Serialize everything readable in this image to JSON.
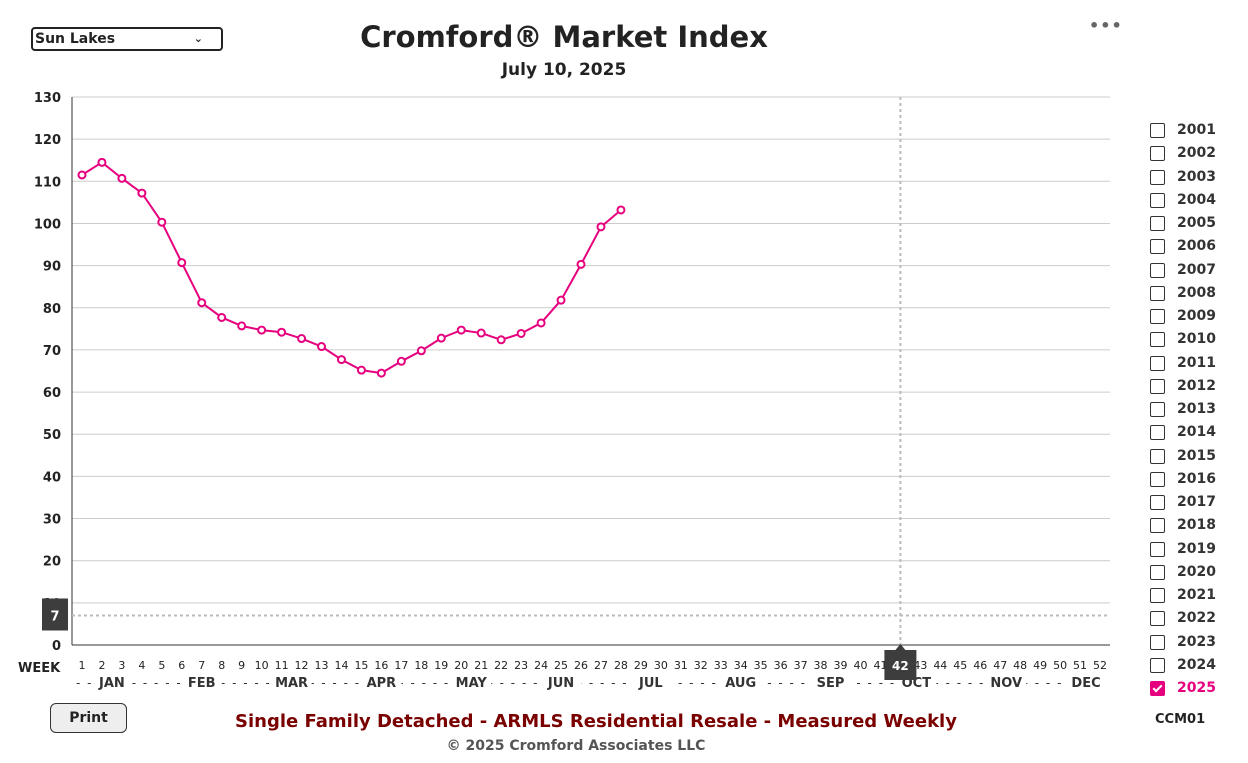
{
  "region_select": {
    "value": "Sun Lakes"
  },
  "header": {
    "title": "Cromford® Market Index",
    "date": "July 10, 2025"
  },
  "footer": {
    "caption": "Single Family Detached - ARMLS Residential Resale - Measured Weekly",
    "copyright": "© 2025 Cromford Associates LLC",
    "code": "CCM01",
    "print_label": "Print"
  },
  "legend": {
    "years": [
      {
        "label": "2001",
        "checked": false
      },
      {
        "label": "2002",
        "checked": false
      },
      {
        "label": "2003",
        "checked": false
      },
      {
        "label": "2004",
        "checked": false
      },
      {
        "label": "2005",
        "checked": false
      },
      {
        "label": "2006",
        "checked": false
      },
      {
        "label": "2007",
        "checked": false
      },
      {
        "label": "2008",
        "checked": false
      },
      {
        "label": "2009",
        "checked": false
      },
      {
        "label": "2010",
        "checked": false
      },
      {
        "label": "2011",
        "checked": false
      },
      {
        "label": "2012",
        "checked": false
      },
      {
        "label": "2013",
        "checked": false
      },
      {
        "label": "2014",
        "checked": false
      },
      {
        "label": "2015",
        "checked": false
      },
      {
        "label": "2016",
        "checked": false
      },
      {
        "label": "2017",
        "checked": false
      },
      {
        "label": "2018",
        "checked": false
      },
      {
        "label": "2019",
        "checked": false
      },
      {
        "label": "2020",
        "checked": false
      },
      {
        "label": "2021",
        "checked": false
      },
      {
        "label": "2022",
        "checked": false
      },
      {
        "label": "2023",
        "checked": false
      },
      {
        "label": "2024",
        "checked": false
      },
      {
        "label": "2025",
        "checked": true
      }
    ]
  },
  "chart_data": {
    "type": "line",
    "title": "Cromford® Market Index",
    "subtitle": "July 10, 2025",
    "xlabel": "WEEK",
    "x_ticks": [
      1,
      2,
      3,
      4,
      5,
      6,
      7,
      8,
      9,
      10,
      11,
      12,
      13,
      14,
      15,
      16,
      17,
      18,
      19,
      20,
      21,
      22,
      23,
      24,
      25,
      26,
      27,
      28,
      29,
      30,
      31,
      32,
      33,
      34,
      35,
      36,
      37,
      38,
      39,
      40,
      41,
      42,
      43,
      44,
      45,
      46,
      47,
      48,
      49,
      50,
      51,
      52
    ],
    "xlim": [
      0.5,
      52.5
    ],
    "ylim": [
      0,
      130
    ],
    "y_ticks": [
      0,
      10,
      20,
      30,
      40,
      50,
      60,
      70,
      80,
      90,
      100,
      110,
      120,
      130
    ],
    "grid": true,
    "months": [
      {
        "label": "JAN",
        "week": 2.5
      },
      {
        "label": "FEB",
        "week": 7
      },
      {
        "label": "MAR",
        "week": 11.5
      },
      {
        "label": "APR",
        "week": 16
      },
      {
        "label": "MAY",
        "week": 20.5
      },
      {
        "label": "JUN",
        "week": 25
      },
      {
        "label": "JUL",
        "week": 29.5
      },
      {
        "label": "AUG",
        "week": 34
      },
      {
        "label": "SEP",
        "week": 38.5
      },
      {
        "label": "OCT",
        "week": 42.8
      },
      {
        "label": "NOV",
        "week": 47.3
      },
      {
        "label": "DEC",
        "week": 51.3
      }
    ],
    "crosshair": {
      "x": 42,
      "y": 7,
      "x_label": "42",
      "y_label": "7"
    },
    "series": [
      {
        "name": "2025",
        "color": "#e6007e",
        "x": [
          1,
          2,
          3,
          4,
          5,
          6,
          7,
          8,
          9,
          10,
          11,
          12,
          13,
          14,
          15,
          16,
          17,
          18,
          19,
          20,
          21,
          22,
          23,
          24,
          25,
          26,
          27,
          28
        ],
        "values": [
          111.5,
          114.5,
          110.7,
          107.2,
          100.3,
          90.7,
          81.2,
          77.7,
          75.7,
          74.7,
          74.2,
          72.7,
          70.8,
          67.7,
          65.2,
          64.5,
          67.3,
          69.8,
          72.8,
          74.7,
          74.0,
          72.4,
          73.9,
          76.4,
          81.8,
          90.3,
          99.2,
          103.2
        ]
      }
    ]
  }
}
